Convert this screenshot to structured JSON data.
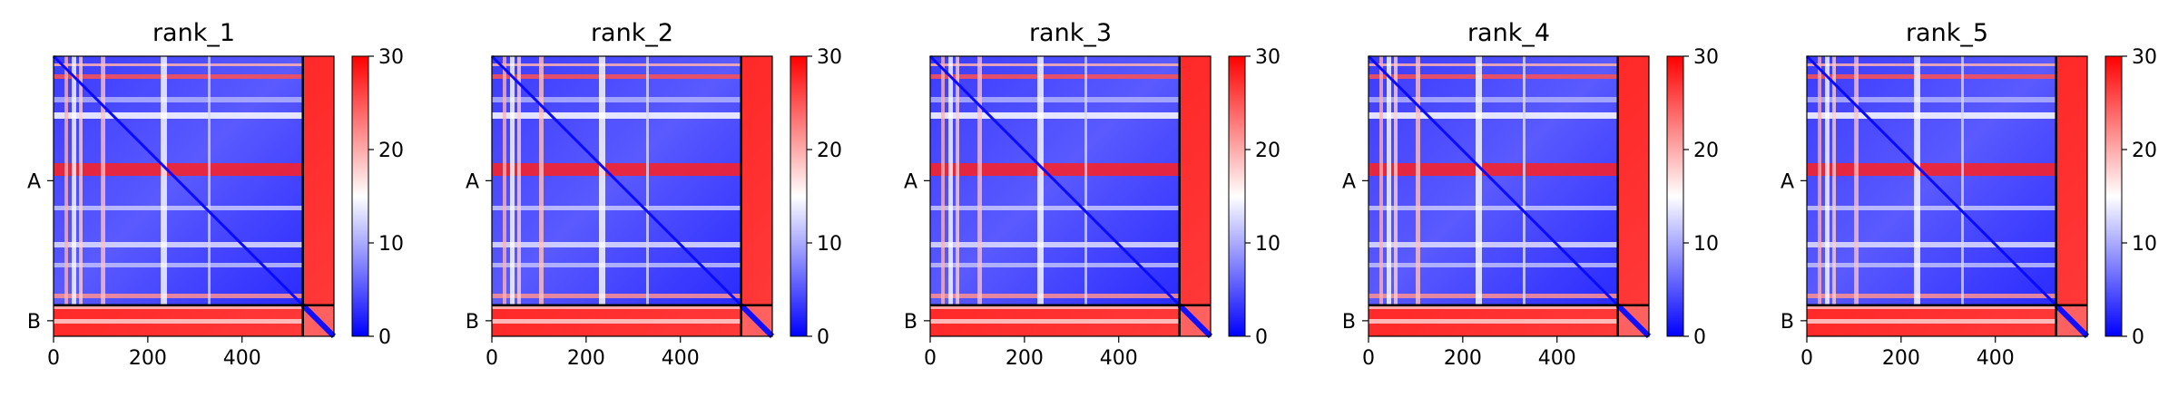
{
  "chart_data": [
    {
      "type": "heatmap",
      "title": "rank_1",
      "x_ticks": [
        0,
        200,
        400
      ],
      "x_range": [
        0,
        595
      ],
      "y_ticks": [
        "A",
        "B"
      ],
      "chains": [
        {
          "name": "A",
          "start": 0,
          "end": 529
        },
        {
          "name": "B",
          "start": 529,
          "end": 595
        }
      ],
      "colorbar": {
        "min": 0,
        "max": 30,
        "ticks": [
          0,
          10,
          20,
          30
        ],
        "colormap": "bwr"
      },
      "grid": false
    },
    {
      "type": "heatmap",
      "title": "rank_2",
      "x_ticks": [
        0,
        200,
        400
      ],
      "x_range": [
        0,
        595
      ],
      "y_ticks": [
        "A",
        "B"
      ],
      "chains": [
        {
          "name": "A",
          "start": 0,
          "end": 529
        },
        {
          "name": "B",
          "start": 529,
          "end": 595
        }
      ],
      "colorbar": {
        "min": 0,
        "max": 30,
        "ticks": [
          0,
          10,
          20,
          30
        ],
        "colormap": "bwr"
      },
      "grid": false
    },
    {
      "type": "heatmap",
      "title": "rank_3",
      "x_ticks": [
        0,
        200,
        400
      ],
      "x_range": [
        0,
        595
      ],
      "y_ticks": [
        "A",
        "B"
      ],
      "chains": [
        {
          "name": "A",
          "start": 0,
          "end": 529
        },
        {
          "name": "B",
          "start": 529,
          "end": 595
        }
      ],
      "colorbar": {
        "min": 0,
        "max": 30,
        "ticks": [
          0,
          10,
          20,
          30
        ],
        "colormap": "bwr"
      },
      "grid": false
    },
    {
      "type": "heatmap",
      "title": "rank_4",
      "x_ticks": [
        0,
        200,
        400
      ],
      "x_range": [
        0,
        595
      ],
      "y_ticks": [
        "A",
        "B"
      ],
      "chains": [
        {
          "name": "A",
          "start": 0,
          "end": 529
        },
        {
          "name": "B",
          "start": 529,
          "end": 595
        }
      ],
      "colorbar": {
        "min": 0,
        "max": 30,
        "ticks": [
          0,
          10,
          20,
          30
        ],
        "colormap": "bwr"
      },
      "grid": false
    },
    {
      "type": "heatmap",
      "title": "rank_5",
      "x_ticks": [
        0,
        200,
        400
      ],
      "x_range": [
        0,
        595
      ],
      "y_ticks": [
        "A",
        "B"
      ],
      "chains": [
        {
          "name": "A",
          "start": 0,
          "end": 529
        },
        {
          "name": "B",
          "start": 529,
          "end": 595
        }
      ],
      "colorbar": {
        "min": 0,
        "max": 30,
        "ticks": [
          0,
          10,
          20,
          30
        ],
        "colormap": "bwr"
      },
      "grid": false
    }
  ]
}
